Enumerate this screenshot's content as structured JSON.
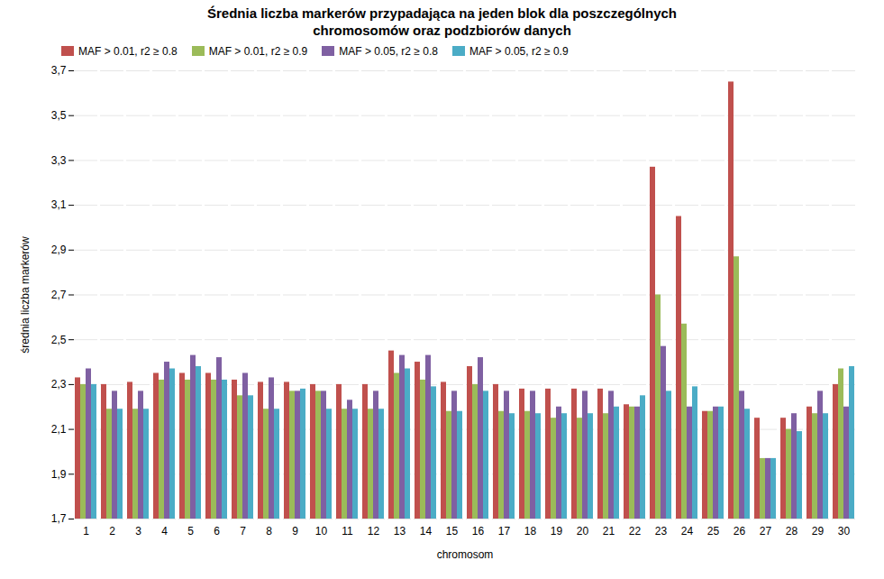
{
  "chart_data": {
    "type": "bar",
    "title": "Średnia liczba markerów przypadająca na jeden blok dla poszczególnych\nchromosomów oraz podzbiorów danych",
    "xlabel": "chromosom",
    "ylabel": "średnia liczba markerów",
    "categories": [
      1,
      2,
      3,
      4,
      5,
      6,
      7,
      8,
      9,
      10,
      11,
      12,
      13,
      14,
      15,
      16,
      17,
      18,
      19,
      20,
      21,
      22,
      23,
      24,
      25,
      26,
      27,
      28,
      29,
      30
    ],
    "series": [
      {
        "name": "MAF > 0.01, r2 ≥ 0.8",
        "color": "#C0504D",
        "values": [
          2.33,
          2.3,
          2.31,
          2.35,
          2.35,
          2.35,
          2.32,
          2.31,
          2.31,
          2.3,
          2.3,
          2.3,
          2.45,
          2.4,
          2.31,
          2.38,
          2.3,
          2.28,
          2.28,
          2.28,
          2.28,
          2.21,
          3.27,
          3.05,
          2.18,
          3.65,
          2.15,
          2.15,
          2.2,
          2.3
        ]
      },
      {
        "name": "MAF > 0.01, r2 ≥ 0.9",
        "color": "#9BBB59",
        "values": [
          2.3,
          2.19,
          2.19,
          2.32,
          2.32,
          2.32,
          2.25,
          2.19,
          2.27,
          2.27,
          2.19,
          2.19,
          2.35,
          2.32,
          2.18,
          2.3,
          2.18,
          2.18,
          2.15,
          2.15,
          2.17,
          2.2,
          2.7,
          2.57,
          2.18,
          2.87,
          1.97,
          2.1,
          2.17,
          2.37
        ]
      },
      {
        "name": "MAF > 0.05, r2 ≥ 0.8",
        "color": "#7F60A2",
        "values": [
          2.37,
          2.27,
          2.27,
          2.4,
          2.43,
          2.42,
          2.35,
          2.33,
          2.27,
          2.27,
          2.23,
          2.27,
          2.43,
          2.43,
          2.27,
          2.42,
          2.27,
          2.27,
          2.2,
          2.27,
          2.27,
          2.2,
          2.47,
          2.2,
          2.2,
          2.27,
          1.97,
          2.17,
          2.27,
          2.2
        ]
      },
      {
        "name": "MAF > 0.05, r2 ≥ 0.9",
        "color": "#4BACC6",
        "values": [
          2.3,
          2.19,
          2.19,
          2.37,
          2.38,
          2.32,
          2.25,
          2.19,
          2.28,
          2.19,
          2.19,
          2.19,
          2.37,
          2.29,
          2.18,
          2.27,
          2.17,
          2.17,
          2.17,
          2.17,
          2.2,
          2.25,
          2.27,
          2.29,
          2.2,
          2.19,
          1.97,
          2.09,
          2.17,
          2.38
        ]
      }
    ],
    "ylim": [
      1.7,
      3.7
    ],
    "yticks": [
      {
        "value": 1.7,
        "label": "1,7"
      },
      {
        "value": 1.9,
        "label": "1,9"
      },
      {
        "value": 2.1,
        "label": "2,1"
      },
      {
        "value": 2.3,
        "label": "2,3"
      },
      {
        "value": 2.5,
        "label": "2,5"
      },
      {
        "value": 2.7,
        "label": "2,7"
      },
      {
        "value": 2.9,
        "label": "2,9"
      },
      {
        "value": 3.1,
        "label": "3,1"
      },
      {
        "value": 3.3,
        "label": "3,3"
      },
      {
        "value": 3.5,
        "label": "3,5"
      },
      {
        "value": 3.7,
        "label": "3,7"
      }
    ],
    "grid": true,
    "legend": "upper left"
  }
}
